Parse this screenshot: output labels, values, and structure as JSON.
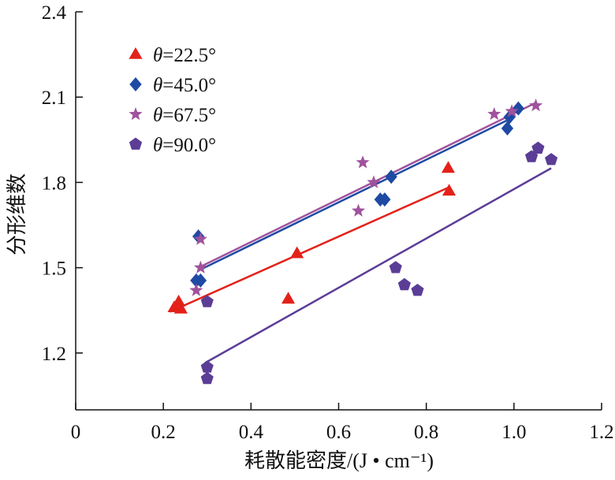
{
  "chart_data": {
    "type": "scatter",
    "title": "",
    "xlabel": "耗散能密度/(J • cm⁻¹)",
    "ylabel": "分形维数",
    "xlim": [
      0,
      1.2
    ],
    "ylim": [
      1.0,
      2.4
    ],
    "x_ticks": [
      "0",
      "0.2",
      "0.4",
      "0.6",
      "0.8",
      "1.0",
      "1.2"
    ],
    "y_ticks": [
      "1.2",
      "1.5",
      "1.8",
      "2.1",
      "2.4"
    ],
    "grid": false,
    "legend_position": "top-left",
    "series": [
      {
        "name": "θ=22.5°",
        "name_symbol": "θ",
        "name_value": "=22.5°",
        "marker": "triangle",
        "color": "#e32119",
        "points": [
          [
            0.225,
            1.36
          ],
          [
            0.235,
            1.38
          ],
          [
            0.24,
            1.355
          ],
          [
            0.485,
            1.39
          ],
          [
            0.505,
            1.55
          ],
          [
            0.85,
            1.85
          ],
          [
            0.852,
            1.77
          ]
        ],
        "fit": [
          [
            0.215,
            1.345
          ],
          [
            0.855,
            1.785
          ]
        ]
      },
      {
        "name": "θ=45.0°",
        "name_symbol": "θ",
        "name_value": "=45.0°",
        "marker": "diamond",
        "color": "#1f4aa3",
        "points": [
          [
            0.275,
            1.455
          ],
          [
            0.28,
            1.61
          ],
          [
            0.285,
            1.455
          ],
          [
            0.695,
            1.74
          ],
          [
            0.705,
            1.74
          ],
          [
            0.72,
            1.82
          ],
          [
            0.985,
            1.99
          ],
          [
            0.99,
            2.03
          ],
          [
            1.01,
            2.06
          ]
        ],
        "fit": [
          [
            0.28,
            1.49
          ],
          [
            1.0,
            2.03
          ]
        ]
      },
      {
        "name": "θ=67.5°",
        "name_symbol": "θ",
        "name_value": "=67.5°",
        "marker": "star",
        "color": "#a0529d",
        "points": [
          [
            0.275,
            1.42
          ],
          [
            0.285,
            1.5
          ],
          [
            0.285,
            1.6
          ],
          [
            0.645,
            1.7
          ],
          [
            0.655,
            1.87
          ],
          [
            0.68,
            1.8
          ],
          [
            0.955,
            2.04
          ],
          [
            0.995,
            2.05
          ],
          [
            1.05,
            2.07
          ]
        ],
        "fit": [
          [
            0.28,
            1.5
          ],
          [
            1.05,
            2.08
          ]
        ]
      },
      {
        "name": "θ=90.0°",
        "name_symbol": "θ",
        "name_value": "=90.0°",
        "marker": "pentagon",
        "color": "#5b3d96",
        "points": [
          [
            0.3,
            1.15
          ],
          [
            0.3,
            1.11
          ],
          [
            0.3,
            1.38
          ],
          [
            0.73,
            1.5
          ],
          [
            0.75,
            1.44
          ],
          [
            0.78,
            1.42
          ],
          [
            1.04,
            1.89
          ],
          [
            1.055,
            1.92
          ],
          [
            1.085,
            1.88
          ]
        ],
        "fit": [
          [
            0.295,
            1.165
          ],
          [
            1.085,
            1.85
          ]
        ]
      }
    ]
  }
}
